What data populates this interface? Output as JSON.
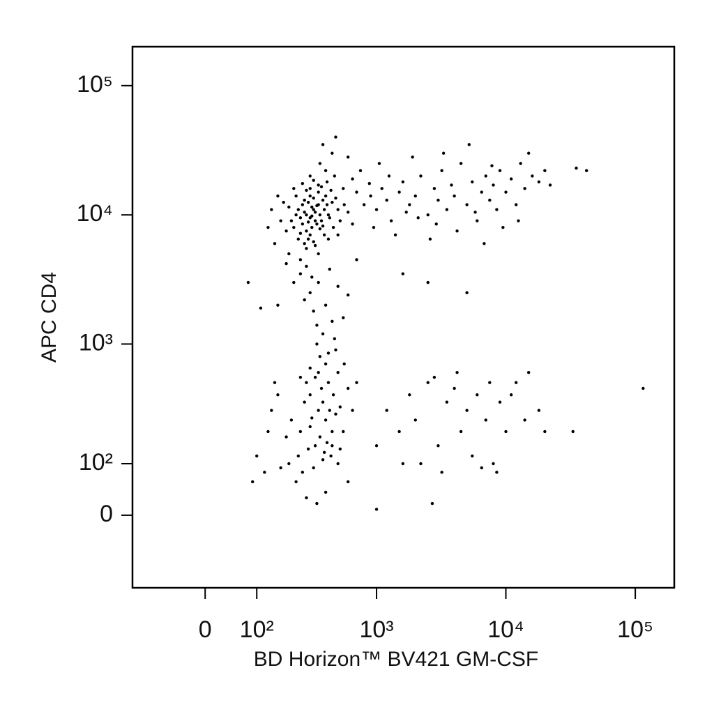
{
  "chart_data": {
    "type": "scatter",
    "xlabel": "BD Horizon™ BV421 GM-CSF",
    "ylabel": "APC CD4",
    "xscale": "biexponential",
    "yscale": "biexponential",
    "color": "#000000",
    "xlim": [
      -160,
      200000
    ],
    "ylim": [
      -160,
      200000
    ],
    "xticks": [
      0,
      {
        "value": 100,
        "label": "10²"
      },
      {
        "value": 1000,
        "label": "10³"
      },
      {
        "value": 10000,
        "label": "10⁴"
      },
      {
        "value": 100000,
        "label": "10⁵"
      }
    ],
    "yticks": [
      0,
      {
        "value": 100,
        "label": "10²"
      },
      {
        "value": 1000,
        "label": "10³"
      },
      {
        "value": 10000,
        "label": "10⁴"
      },
      {
        "value": 100000,
        "label": "10⁵"
      }
    ],
    "x": [
      280,
      300,
      320,
      260,
      350,
      310,
      290,
      270,
      330,
      360,
      240,
      380,
      300,
      320,
      340,
      250,
      410,
      290,
      230,
      370,
      400,
      310,
      280,
      350,
      260,
      330,
      300,
      420,
      220,
      390,
      270,
      450,
      310,
      290,
      340,
      360,
      250,
      320,
      380,
      440,
      480,
      210,
      200,
      500,
      270,
      300,
      350,
      410,
      470,
      430,
      390,
      330,
      280,
      240,
      190,
      180,
      230,
      520,
      560,
      600,
      460,
      370,
      320,
      280,
      260,
      400,
      360,
      450,
      300,
      220,
      170,
      160,
      150,
      140,
      130,
      200,
      250,
      350,
      420,
      500,
      650,
      700,
      550,
      380,
      480,
      600,
      800,
      900,
      1000,
      1100,
      1200,
      1300,
      1500,
      1600,
      1800,
      2000,
      2200,
      2500,
      2800,
      3000,
      3200,
      3500,
      3800,
      4000,
      4500,
      5000,
      5500,
      6000,
      6500,
      7000,
      7500,
      8000,
      8500,
      9000,
      10000,
      11000,
      12000,
      13000,
      14000,
      15000,
      16000,
      18000,
      20000,
      22000,
      950,
      1400,
      2600,
      4200,
      6800,
      9500,
      3300,
      5200,
      1900,
      750,
      1050,
      2100,
      2900,
      5800,
      7800,
      12500,
      35000,
      42000,
      1250,
      650,
      880,
      1700,
      250,
      300,
      350,
      400,
      450,
      280,
      320,
      500,
      220,
      380,
      430,
      270,
      550,
      190,
      340,
      600,
      470,
      310,
      160,
      110,
      80,
      700,
      1600,
      2500,
      5000,
      350,
      400,
      300,
      450,
      380,
      420,
      330,
      360,
      480,
      300,
      270,
      500,
      400,
      350,
      440,
      390,
      310,
      460,
      520,
      250,
      280,
      410,
      370,
      330,
      430,
      290,
      360,
      480,
      550,
      600,
      240,
      210,
      190,
      170,
      200,
      230,
      260,
      320,
      380,
      450,
      520,
      560,
      650,
      700,
      160,
      140,
      120,
      100,
      90,
      300,
      340,
      420,
      250,
      500,
      400,
      340,
      280,
      600,
      130,
      150,
      1200,
      1500,
      1800,
      2000,
      2500,
      3000,
      3500,
      4000,
      4500,
      5000,
      5500,
      6000,
      7000,
      8000,
      9000,
      10000,
      12000,
      14000,
      18000,
      20000,
      1000,
      2200,
      3200,
      6500,
      8500,
      1600,
      2800,
      4200,
      7500,
      11000,
      33000,
      115000,
      1000,
      2700,
      15000
    ],
    "values": [
      10000,
      9500,
      11000,
      8500,
      12000,
      8000,
      12500,
      10500,
      9000,
      10000,
      11000,
      13000,
      7000,
      13500,
      8500,
      9500,
      12000,
      6500,
      10000,
      9000,
      14000,
      11500,
      7500,
      15000,
      12000,
      10500,
      14000,
      10000,
      8000,
      11000,
      13000,
      12500,
      9800,
      8800,
      11800,
      7800,
      7200,
      6200,
      8200,
      15500,
      13500,
      9000,
      11500,
      11000,
      6000,
      16000,
      17000,
      18000,
      20000,
      9500,
      7000,
      5800,
      5500,
      6500,
      7500,
      12500,
      14000,
      9000,
      12000,
      10500,
      8000,
      16500,
      18500,
      15500,
      17500,
      22000,
      25000,
      30000,
      20000,
      16000,
      9000,
      14000,
      6000,
      11000,
      8000,
      5000,
      4500,
      5000,
      6500,
      7000,
      8500,
      15000,
      16000,
      35000,
      40000,
      28000,
      12000,
      14000,
      11000,
      16000,
      13000,
      9000,
      15000,
      18000,
      12000,
      14000,
      20000,
      10000,
      16000,
      13000,
      22000,
      11000,
      17000,
      14000,
      25000,
      12000,
      18000,
      9000,
      15000,
      20000,
      13000,
      17000,
      11000,
      22000,
      15000,
      19000,
      12000,
      25000,
      16000,
      30000,
      20000,
      18000,
      22000,
      17000,
      8000,
      7000,
      6500,
      7500,
      6000,
      8000,
      30000,
      35000,
      28000,
      22000,
      25000,
      9500,
      8500,
      10500,
      24000,
      9000,
      23000,
      22000,
      20000,
      19000,
      17500,
      10500,
      3500,
      2500,
      3000,
      2000,
      1500,
      4000,
      1800,
      2800,
      3000,
      1200,
      3800,
      2200,
      1600,
      4200,
      1400,
      2400,
      1100,
      3300,
      2000,
      1900,
      3000,
      4500,
      3500,
      3000,
      2500,
      300,
      250,
      400,
      200,
      350,
      500,
      150,
      180,
      280,
      220,
      350,
      600,
      700,
      600,
      120,
      130,
      260,
      400,
      320,
      200,
      500,
      160,
      450,
      550,
      300,
      140,
      800,
      900,
      200,
      450,
      120,
      250,
      180,
      90,
      100,
      60,
      80,
      90,
      110,
      150,
      140,
      700,
      300,
      500,
      400,
      300,
      80,
      120,
      60,
      650,
      1000,
      850,
      550,
      100,
      40,
      20,
      30,
      60,
      200,
      500,
      300,
      200,
      400,
      250,
      500,
      150,
      350,
      450,
      200,
      300,
      120,
      400,
      250,
      100,
      350,
      200,
      500,
      250,
      300,
      200,
      150,
      100,
      80,
      90,
      80,
      100,
      550,
      600,
      500,
      400,
      200,
      450,
      10,
      20,
      600
    ]
  }
}
